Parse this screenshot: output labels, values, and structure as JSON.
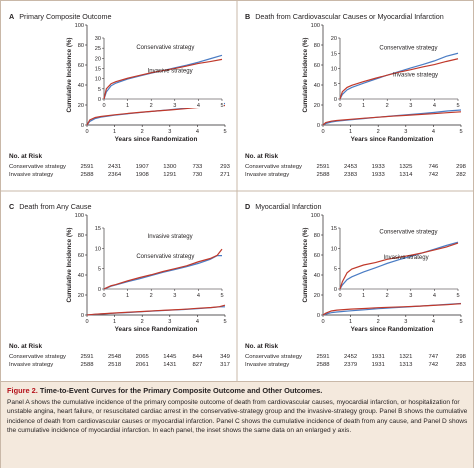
{
  "colors": {
    "conservative": "#4a7cc4",
    "invasive": "#c0392b",
    "figure_label": "#b5121b",
    "caption_bg": "#f4e9dd",
    "border": "#c9b8a8"
  },
  "chart_data": [
    {
      "id": "A",
      "type": "line",
      "letter": "A",
      "title": "Primary Composite Outcome",
      "xlabel": "Years since Randomization",
      "ylabel": "Cumulative Incidence (%)",
      "xlim": [
        0,
        5
      ],
      "ylim": [
        0,
        100
      ],
      "xticks": [
        0,
        1,
        2,
        3,
        4,
        5
      ],
      "yticks": [
        0,
        20,
        40,
        60,
        80,
        100
      ],
      "inset": {
        "ylim": [
          0,
          30
        ],
        "yticks": [
          0,
          5,
          10,
          15,
          20,
          25,
          30
        ],
        "xticks": [
          0,
          1,
          2,
          3,
          4,
          5
        ],
        "series": [
          {
            "name": "Conservative strategy",
            "x": [
              0,
              0.1,
              0.3,
              0.5,
              1,
              1.5,
              2,
              2.5,
              3,
              3.5,
              4,
              4.5,
              5
            ],
            "y": [
              0,
              3.5,
              6.5,
              7.8,
              9.8,
              11.3,
              12.7,
              14,
              15.3,
              16.6,
              18.1,
              19.8,
              21.5
            ]
          },
          {
            "name": "Invasive strategy",
            "x": [
              0,
              0.1,
              0.3,
              0.5,
              1,
              1.5,
              2,
              2.5,
              3,
              3.5,
              4,
              4.5,
              5
            ],
            "y": [
              0,
              5,
              7.5,
              8.5,
              10.2,
              11.6,
              12.9,
              14,
              15,
              16.2,
              17.5,
              18.4,
              19.5
            ]
          }
        ],
        "labels": [
          {
            "text": "Conservative strategy",
            "series": 0
          },
          {
            "text": "Invasive strategy",
            "series": 1
          }
        ]
      },
      "series": [
        {
          "name": "Conservative strategy",
          "x": [
            0,
            0.1,
            0.3,
            0.5,
            1,
            1.5,
            2,
            2.5,
            3,
            3.5,
            4,
            4.5,
            5
          ],
          "y": [
            0,
            3.5,
            6.5,
            7.8,
            9.8,
            11.3,
            12.7,
            14,
            15.3,
            16.6,
            18.1,
            19.8,
            21.5
          ]
        },
        {
          "name": "Invasive strategy",
          "x": [
            0,
            0.1,
            0.3,
            0.5,
            1,
            1.5,
            2,
            2.5,
            3,
            3.5,
            4,
            4.5,
            5
          ],
          "y": [
            0,
            5,
            7.5,
            8.5,
            10.2,
            11.6,
            12.9,
            14,
            15,
            16.2,
            17.5,
            18.4,
            19.5
          ]
        }
      ],
      "risk_table": {
        "header": "No. at Risk",
        "rows": [
          {
            "label": "Conservative strategy",
            "values": [
              "2591",
              "2431",
              "1907",
              "1300",
              "733",
              "293"
            ]
          },
          {
            "label": "Invasive strategy",
            "values": [
              "2588",
              "2364",
              "1908",
              "1291",
              "730",
              "271"
            ]
          }
        ]
      }
    },
    {
      "id": "B",
      "type": "line",
      "letter": "B",
      "title": "Death from Cardiovascular Causes or Myocardial Infarction",
      "xlabel": "Years since Randomization",
      "ylabel": "Cumulative Incidence (%)",
      "xlim": [
        0,
        5
      ],
      "ylim": [
        0,
        100
      ],
      "xticks": [
        0,
        1,
        2,
        3,
        4,
        5
      ],
      "yticks": [
        0,
        20,
        40,
        60,
        80,
        100
      ],
      "inset": {
        "ylim": [
          0,
          20
        ],
        "yticks": [
          0,
          5,
          10,
          15,
          20
        ],
        "xticks": [
          0,
          1,
          2,
          3,
          4,
          5
        ],
        "series": [
          {
            "name": "Conservative strategy",
            "x": [
              0,
              0.1,
              0.3,
              0.5,
              1,
              1.5,
              2,
              2.5,
              3,
              3.5,
              4,
              4.5,
              5
            ],
            "y": [
              0,
              1.5,
              3,
              3.8,
              5.2,
              6.5,
              7.8,
              9,
              10.2,
              11.3,
              12.5,
              14,
              15
            ]
          },
          {
            "name": "Invasive strategy",
            "x": [
              0,
              0.1,
              0.3,
              0.5,
              1,
              1.5,
              2,
              2.5,
              3,
              3.5,
              4,
              4.5,
              5
            ],
            "y": [
              0,
              2.4,
              3.8,
              4.5,
              5.7,
              6.8,
              7.8,
              8.8,
              9.6,
              10.5,
              11.3,
              12.3,
              13.2
            ]
          }
        ],
        "labels": [
          {
            "text": "Conservative strategy",
            "series": 0
          },
          {
            "text": "Invasive strategy",
            "series": 1
          }
        ]
      },
      "series": [
        {
          "name": "Conservative strategy",
          "x": [
            0,
            0.1,
            0.3,
            0.5,
            1,
            1.5,
            2,
            2.5,
            3,
            3.5,
            4,
            4.5,
            5
          ],
          "y": [
            0,
            1.5,
            3,
            3.8,
            5.2,
            6.5,
            7.8,
            9,
            10.2,
            11.3,
            12.5,
            14,
            15
          ]
        },
        {
          "name": "Invasive strategy",
          "x": [
            0,
            0.1,
            0.3,
            0.5,
            1,
            1.5,
            2,
            2.5,
            3,
            3.5,
            4,
            4.5,
            5
          ],
          "y": [
            0,
            2.4,
            3.8,
            4.5,
            5.7,
            6.8,
            7.8,
            8.8,
            9.6,
            10.5,
            11.3,
            12.3,
            13.2
          ]
        }
      ],
      "risk_table": {
        "header": "No. at Risk",
        "rows": [
          {
            "label": "Conservative strategy",
            "values": [
              "2591",
              "2453",
              "1933",
              "1325",
              "746",
              "298"
            ]
          },
          {
            "label": "Invasive strategy",
            "values": [
              "2588",
              "2383",
              "1933",
              "1314",
              "742",
              "282"
            ]
          }
        ]
      }
    },
    {
      "id": "C",
      "type": "line",
      "letter": "C",
      "title": "Death from Any Cause",
      "xlabel": "Years since Randomization",
      "ylabel": "Cumulative Incidence (%)",
      "xlim": [
        0,
        5
      ],
      "ylim": [
        0,
        100
      ],
      "xticks": [
        0,
        1,
        2,
        3,
        4,
        5
      ],
      "yticks": [
        0,
        20,
        40,
        60,
        80,
        100
      ],
      "inset": {
        "ylim": [
          0,
          15
        ],
        "yticks": [
          0,
          5,
          10,
          15
        ],
        "xticks": [
          0,
          1,
          2,
          3,
          4,
          5
        ],
        "series": [
          {
            "name": "Conservative strategy",
            "x": [
              0,
              0.1,
              0.3,
              0.5,
              1,
              1.5,
              2,
              2.5,
              3,
              3.5,
              4,
              4.5,
              4.8,
              5
            ],
            "y": [
              0,
              0.2,
              0.7,
              1.0,
              1.8,
              2.5,
              3.3,
              4.1,
              4.8,
              5.5,
              6.3,
              7.3,
              8.2,
              8.2
            ]
          },
          {
            "name": "Invasive strategy",
            "x": [
              0,
              0.1,
              0.3,
              0.5,
              1,
              1.5,
              2,
              2.5,
              3,
              3.5,
              4,
              4.5,
              4.8,
              5
            ],
            "y": [
              0,
              0.3,
              0.8,
              1.1,
              2.0,
              2.8,
              3.5,
              4.3,
              5.0,
              5.7,
              6.7,
              7.5,
              8.3,
              9.8
            ]
          }
        ],
        "labels": [
          {
            "text": "Invasive strategy",
            "series": 1
          },
          {
            "text": "Conservative strategy",
            "series": 0
          }
        ]
      },
      "series": [
        {
          "name": "Conservative strategy",
          "x": [
            0,
            0.1,
            0.3,
            0.5,
            1,
            1.5,
            2,
            2.5,
            3,
            3.5,
            4,
            4.5,
            4.8,
            5
          ],
          "y": [
            0,
            0.2,
            0.7,
            1.0,
            1.8,
            2.5,
            3.3,
            4.1,
            4.8,
            5.5,
            6.3,
            7.3,
            8.2,
            8.2
          ]
        },
        {
          "name": "Invasive strategy",
          "x": [
            0,
            0.1,
            0.3,
            0.5,
            1,
            1.5,
            2,
            2.5,
            3,
            3.5,
            4,
            4.5,
            4.8,
            5
          ],
          "y": [
            0,
            0.3,
            0.8,
            1.1,
            2.0,
            2.8,
            3.5,
            4.3,
            5.0,
            5.7,
            6.7,
            7.5,
            8.3,
            9.8
          ]
        }
      ],
      "risk_table": {
        "header": "No. at Risk",
        "rows": [
          {
            "label": "Conservative strategy",
            "values": [
              "2591",
              "2548",
              "2065",
              "1445",
              "844",
              "349"
            ]
          },
          {
            "label": "Invasive strategy",
            "values": [
              "2588",
              "2518",
              "2061",
              "1431",
              "827",
              "317"
            ]
          }
        ]
      }
    },
    {
      "id": "D",
      "type": "line",
      "letter": "D",
      "title": "Myocardial Infarction",
      "xlabel": "Years since Randomization",
      "ylabel": "Cumulative Incidence (%)",
      "xlim": [
        0,
        5
      ],
      "ylim": [
        0,
        100
      ],
      "xticks": [
        0,
        1,
        2,
        3,
        4,
        5
      ],
      "yticks": [
        0,
        20,
        40,
        60,
        80,
        100
      ],
      "inset": {
        "ylim": [
          0,
          15
        ],
        "yticks": [
          0,
          5,
          10,
          15
        ],
        "xticks": [
          0,
          1,
          2,
          3,
          4,
          5
        ],
        "series": [
          {
            "name": "Conservative strategy",
            "x": [
              0,
              0.1,
              0.3,
              0.5,
              1,
              1.5,
              2,
              2.5,
              3,
              3.5,
              4,
              4.5,
              5
            ],
            "y": [
              0,
              1.0,
              2.3,
              3.0,
              4.2,
              5.2,
              6.3,
              7.2,
              8.0,
              8.9,
              9.8,
              10.7,
              11.5
            ]
          },
          {
            "name": "Invasive strategy",
            "x": [
              0,
              0.1,
              0.3,
              0.5,
              1,
              1.5,
              2,
              2.5,
              3,
              3.5,
              4,
              4.5,
              5
            ],
            "y": [
              0,
              1.8,
              4.0,
              4.9,
              5.9,
              6.5,
              7.3,
              7.8,
              8.3,
              8.9,
              9.6,
              10.3,
              11.3
            ]
          }
        ],
        "labels": [
          {
            "text": "Conservative strategy",
            "series": 0
          },
          {
            "text": "Invasive strategy",
            "series": 1
          }
        ]
      },
      "series": [
        {
          "name": "Conservative strategy",
          "x": [
            0,
            0.1,
            0.3,
            0.5,
            1,
            1.5,
            2,
            2.5,
            3,
            3.5,
            4,
            4.5,
            5
          ],
          "y": [
            0,
            1.0,
            2.3,
            3.0,
            4.2,
            5.2,
            6.3,
            7.2,
            8.0,
            8.9,
            9.8,
            10.7,
            11.5
          ]
        },
        {
          "name": "Invasive strategy",
          "x": [
            0,
            0.1,
            0.3,
            0.5,
            1,
            1.5,
            2,
            2.5,
            3,
            3.5,
            4,
            4.5,
            5
          ],
          "y": [
            0,
            1.8,
            4.0,
            4.9,
            5.9,
            6.5,
            7.3,
            7.8,
            8.3,
            8.9,
            9.6,
            10.3,
            11.3
          ]
        }
      ],
      "risk_table": {
        "header": "No. at Risk",
        "rows": [
          {
            "label": "Conservative strategy",
            "values": [
              "2591",
              "2452",
              "1931",
              "1321",
              "747",
              "298"
            ]
          },
          {
            "label": "Invasive strategy",
            "values": [
              "2588",
              "2379",
              "1931",
              "1313",
              "742",
              "283"
            ]
          }
        ]
      }
    }
  ],
  "caption": {
    "figure_label": "Figure 2.",
    "title": "Time-to-Event Curves for the Primary Composite Outcome and Other Outcomes.",
    "body": "Panel A shows the cumulative incidence of the primary composite outcome of death from cardiovascular causes, myocardial infarction, or hospitalization for unstable angina, heart failure, or resuscitated cardiac arrest in the conservative-strategy group and the invasive-strategy group. Panel B shows the cumulative incidence of death from cardiovascular causes or myocardial infarction. Panel C shows the cumulative incidence of death from any cause, and Panel D shows the cumulative incidence of myocardial infarction. In each panel, the inset shows the same data on an enlarged y axis."
  }
}
